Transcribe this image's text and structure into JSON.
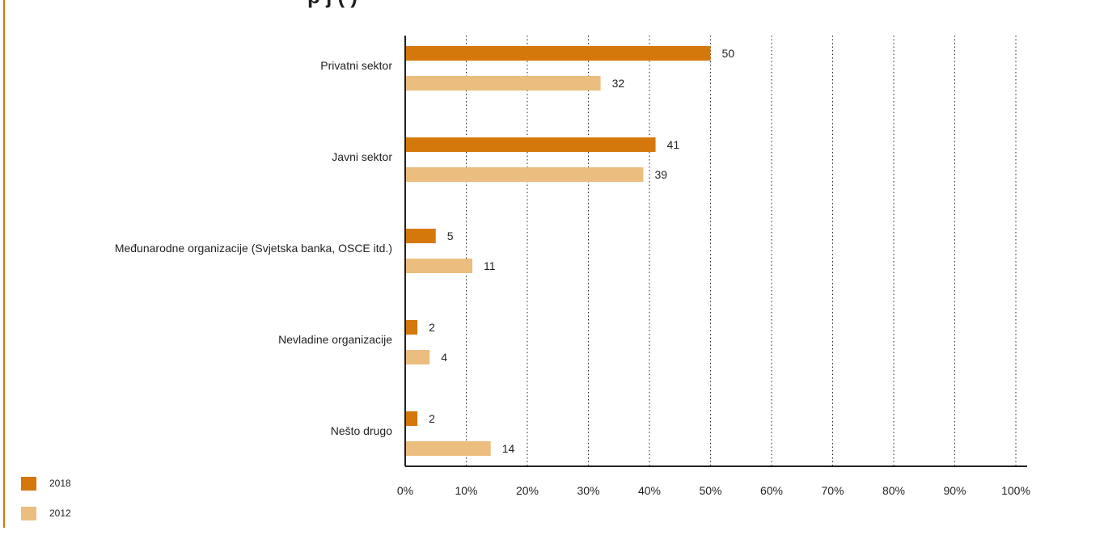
{
  "title_visible": "p      j  ( )",
  "colors": {
    "accent": "#d5780b",
    "series_2018": "#d5780b",
    "series_2012": "#ebbd7f"
  },
  "legend": [
    {
      "label": "2018",
      "color": "#d5780b"
    },
    {
      "label": "2012",
      "color": "#ebbd7f"
    }
  ],
  "chart_data": {
    "type": "bar",
    "orientation": "horizontal",
    "categories": [
      "Privatni sektor",
      "Javni sektor",
      "Međunarodne organizacije (Svjetska banka, OSCE itd.)",
      "Nevladine organizacije",
      "Nešto drugo"
    ],
    "series": [
      {
        "name": "2018",
        "color": "#d5780b",
        "values": [
          50,
          41,
          5,
          2,
          2
        ]
      },
      {
        "name": "2012",
        "color": "#ebbd7f",
        "values": [
          32,
          39,
          11,
          4,
          14
        ]
      }
    ],
    "xlim": [
      0,
      100
    ],
    "xticks": [
      "0%",
      "10%",
      "20%",
      "30%",
      "40%",
      "50%",
      "60%",
      "70%",
      "80%",
      "90%",
      "100%"
    ],
    "grid": "vertical dotted",
    "legend_position": "bottom-left"
  }
}
